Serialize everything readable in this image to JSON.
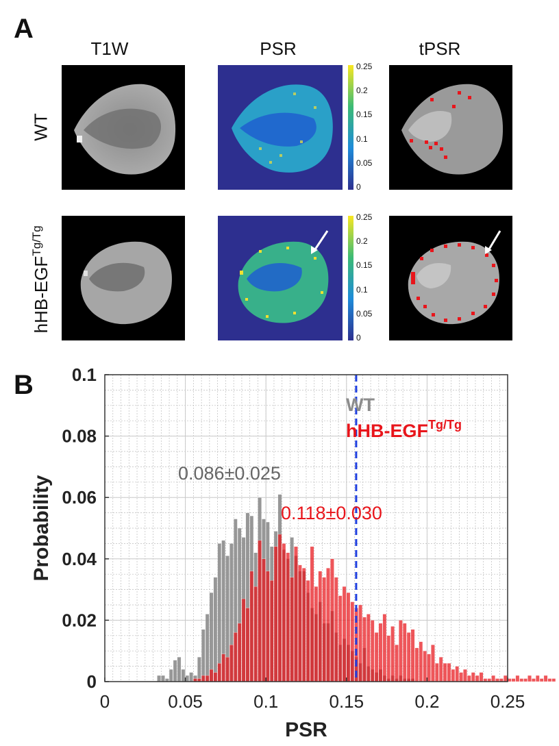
{
  "panels": {
    "a": "A",
    "b": "B"
  },
  "columns": {
    "t1w": "T1W",
    "psr": "PSR",
    "tpsr": "tPSR"
  },
  "rows": {
    "wt": "WT",
    "tg": "hHB-EGF",
    "tg_sup": "Tg/Tg"
  },
  "colorbar": {
    "ticks": [
      "0.25",
      "0.2",
      "0.15",
      "0.1",
      "0.05",
      "0"
    ]
  },
  "colors": {
    "wt": "#8c8c8c",
    "tg": "#e8151b",
    "threshold": "#1f3fe0",
    "psr_bg": "#2d2f8f"
  },
  "chart_data": {
    "type": "bar",
    "title": "",
    "xlabel": "PSR",
    "ylabel": "Probability",
    "xlim": [
      0,
      0.25
    ],
    "ylim": [
      0,
      0.1
    ],
    "xticks": [
      "0",
      "0.05",
      "0.1",
      "0.15",
      "0.2",
      "0.25"
    ],
    "yticks": [
      "0",
      "0.02",
      "0.04",
      "0.06",
      "0.08",
      "0.1"
    ],
    "threshold": 0.156,
    "legend": {
      "wt": "WT",
      "tg": "hHB-EGF",
      "tg_sup": "Tg/Tg",
      "placement": "top-right"
    },
    "annotations": {
      "wt_mean": "0.086±0.025",
      "tg_mean": "0.118±0.030"
    },
    "bin_width": 0.0025,
    "series": [
      {
        "name": "WT",
        "bin_start": 0.0325,
        "values": [
          0.002,
          0.002,
          0.001,
          0.004,
          0.007,
          0.008,
          0.004,
          0.002,
          0.003,
          0.002,
          0.008,
          0.017,
          0.022,
          0.029,
          0.034,
          0.045,
          0.046,
          0.041,
          0.045,
          0.053,
          0.05,
          0.047,
          0.055,
          0.054,
          0.042,
          0.06,
          0.053,
          0.052,
          0.044,
          0.049,
          0.061,
          0.043,
          0.04,
          0.047,
          0.041,
          0.036,
          0.036,
          0.029,
          0.024,
          0.022,
          0.026,
          0.019,
          0.019,
          0.023,
          0.016,
          0.012,
          0.014,
          0.012,
          0.01,
          0.008,
          0.006,
          0.011,
          0.005,
          0.004,
          0.003,
          0.004,
          0.002,
          0.001,
          0.002,
          0.001,
          0.002,
          0.001,
          0.001,
          0.001
        ]
      },
      {
        "name": "hHB-EGF Tg/Tg",
        "bin_start": 0.055,
        "values": [
          0.001,
          0.001,
          0.002,
          0.002,
          0.004,
          0.003,
          0.006,
          0.009,
          0.008,
          0.012,
          0.016,
          0.019,
          0.027,
          0.024,
          0.036,
          0.031,
          0.046,
          0.04,
          0.036,
          0.033,
          0.044,
          0.048,
          0.045,
          0.042,
          0.034,
          0.044,
          0.038,
          0.037,
          0.033,
          0.044,
          0.031,
          0.036,
          0.034,
          0.037,
          0.04,
          0.034,
          0.028,
          0.031,
          0.029,
          0.026,
          0.024,
          0.025,
          0.021,
          0.022,
          0.02,
          0.016,
          0.019,
          0.022,
          0.015,
          0.018,
          0.012,
          0.02,
          0.019,
          0.016,
          0.017,
          0.011,
          0.013,
          0.01,
          0.009,
          0.012,
          0.006,
          0.008,
          0.006,
          0.006,
          0.004,
          0.005,
          0.003,
          0.004,
          0.002,
          0.003,
          0.002,
          0.003,
          0.001,
          0.001,
          0.002,
          0.001,
          0.001,
          0.002,
          0.001,
          0.001,
          0.002,
          0.001,
          0.001,
          0.002,
          0.001,
          0.002,
          0.001,
          0.002,
          0.001,
          0.001
        ]
      }
    ]
  }
}
